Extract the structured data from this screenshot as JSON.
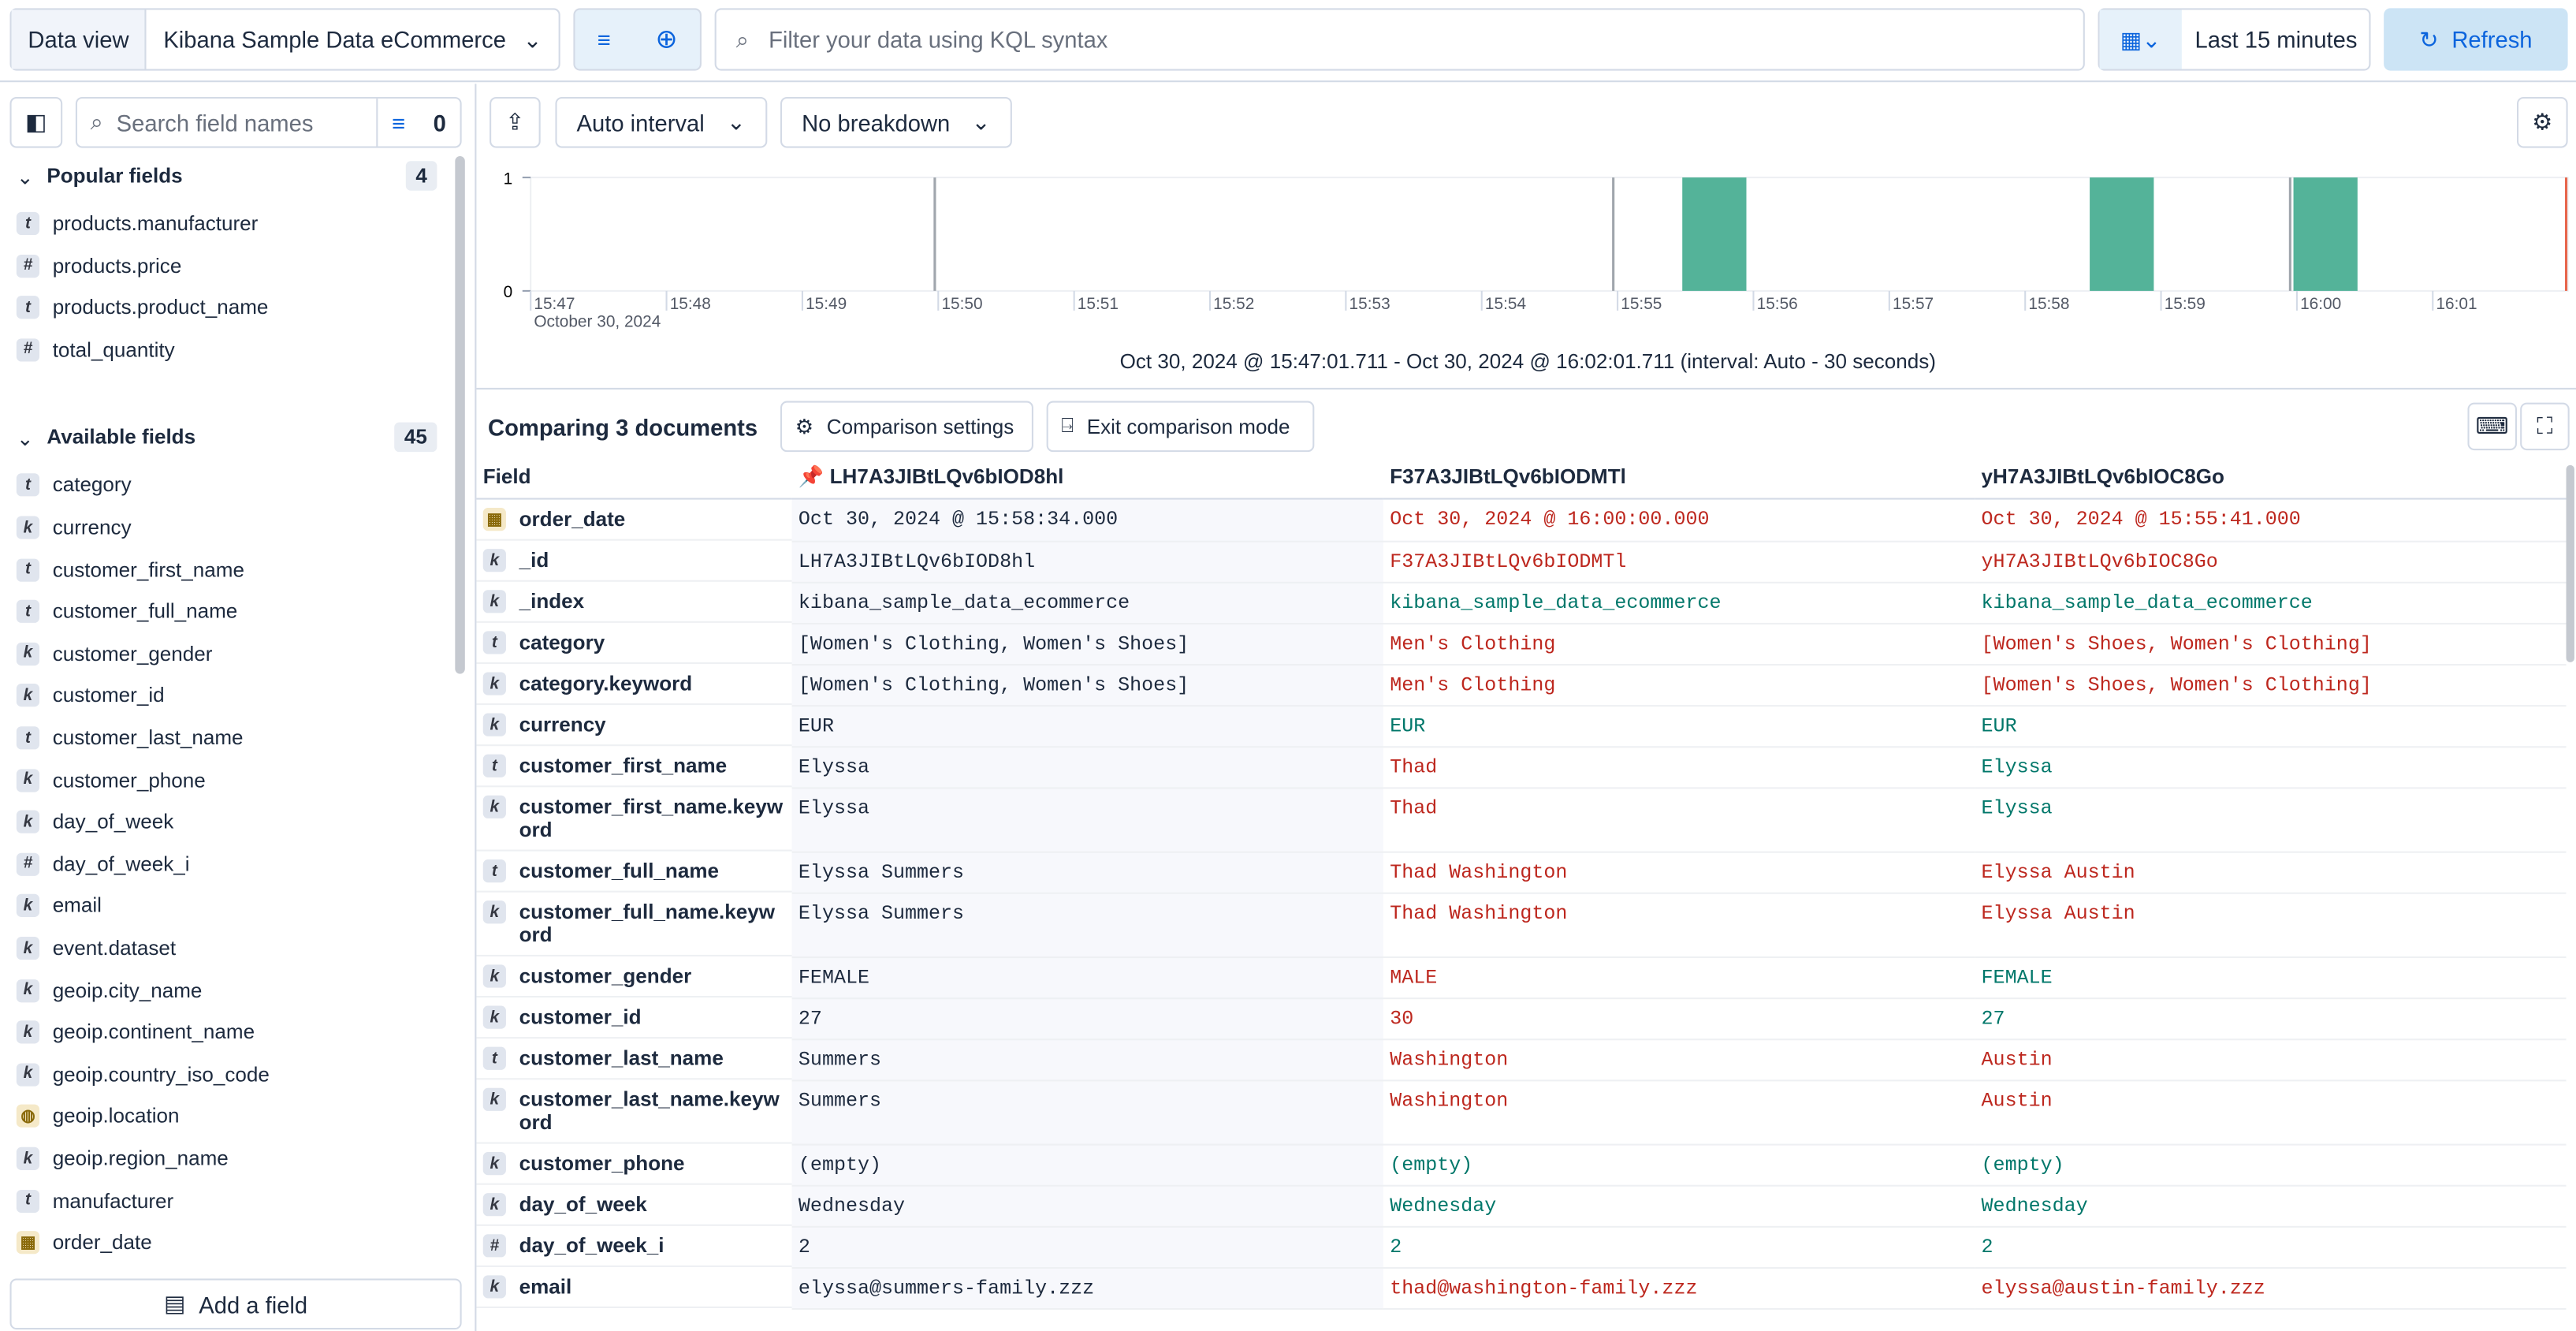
{
  "top_bar": {
    "data_view_label": "Data view",
    "data_view": "Kibana Sample Data eCommerce",
    "query_placeholder": "Filter your data using KQL syntax",
    "time_range": "Last 15 minutes",
    "refresh": "Refresh"
  },
  "sidebar": {
    "search_placeholder": "Search field names",
    "filter_count": "0",
    "popular": {
      "title": "Popular fields",
      "count": "4",
      "fields": [
        {
          "type": "t",
          "name": "products.manufacturer"
        },
        {
          "type": "#",
          "name": "products.price"
        },
        {
          "type": "t",
          "name": "products.product_name"
        },
        {
          "type": "#",
          "name": "total_quantity"
        }
      ]
    },
    "available": {
      "title": "Available fields",
      "count": "45",
      "fields": [
        {
          "type": "t",
          "name": "category"
        },
        {
          "type": "k",
          "name": "currency"
        },
        {
          "type": "t",
          "name": "customer_first_name"
        },
        {
          "type": "t",
          "name": "customer_full_name"
        },
        {
          "type": "k",
          "name": "customer_gender"
        },
        {
          "type": "k",
          "name": "customer_id"
        },
        {
          "type": "t",
          "name": "customer_last_name"
        },
        {
          "type": "k",
          "name": "customer_phone"
        },
        {
          "type": "k",
          "name": "day_of_week"
        },
        {
          "type": "#",
          "name": "day_of_week_i"
        },
        {
          "type": "k",
          "name": "email"
        },
        {
          "type": "k",
          "name": "event.dataset"
        },
        {
          "type": "k",
          "name": "geoip.city_name"
        },
        {
          "type": "k",
          "name": "geoip.continent_name"
        },
        {
          "type": "k",
          "name": "geoip.country_iso_code"
        },
        {
          "type": "geo",
          "name": "geoip.location"
        },
        {
          "type": "k",
          "name": "geoip.region_name"
        },
        {
          "type": "t",
          "name": "manufacturer"
        },
        {
          "type": "date",
          "name": "order_date"
        }
      ]
    },
    "add_field": "Add a field"
  },
  "histogram": {
    "interval": "Auto interval",
    "breakdown": "No breakdown",
    "ylim": [
      0,
      1
    ],
    "yticks": [
      0,
      1
    ],
    "xticks": [
      "15:47",
      "15:48",
      "15:49",
      "15:50",
      "15:51",
      "15:52",
      "15:53",
      "15:54",
      "15:55",
      "15:56",
      "15:57",
      "15:58",
      "15:59",
      "16:00",
      "16:01"
    ],
    "date_label": "October 30, 2024",
    "bar_counts": [
      1,
      1,
      1
    ],
    "range_text": "Oct 30, 2024 @ 15:47:01.711 - Oct 30, 2024 @ 16:02:01.711 (interval: Auto - 30 seconds)"
  },
  "comparison": {
    "title": "Comparing 3 documents",
    "settings_button": "Comparison settings",
    "exit_button": "Exit comparison mode",
    "columns": [
      "Field",
      "LH7A3JIBtLQv6bIOD8hl",
      "F37A3JIBtLQv6bIODMTl",
      "yH7A3JIBtLQv6bIOC8Go"
    ],
    "rows": [
      {
        "type": "date",
        "field": "order_date",
        "values": [
          "Oct 30, 2024 @ 15:58:34.000",
          "Oct 30, 2024 @ 16:00:00.000",
          "Oct 30, 2024 @ 15:55:41.000"
        ]
      },
      {
        "type": "k",
        "field": "_id",
        "values": [
          "LH7A3JIBtLQv6bIOD8hl",
          "F37A3JIBtLQv6bIODMTl",
          "yH7A3JIBtLQv6bIOC8Go"
        ]
      },
      {
        "type": "k",
        "field": "_index",
        "values": [
          "kibana_sample_data_ecommerce",
          "kibana_sample_data_ecommerce",
          "kibana_sample_data_ecommerce"
        ]
      },
      {
        "type": "t",
        "field": "category",
        "values": [
          "[Women's Clothing, Women's Shoes]",
          "Men's Clothing",
          "[Women's Shoes, Women's Clothing]"
        ]
      },
      {
        "type": "k",
        "field": "category.keyword",
        "values": [
          "[Women's Clothing, Women's Shoes]",
          "Men's Clothing",
          "[Women's Shoes, Women's Clothing]"
        ]
      },
      {
        "type": "k",
        "field": "currency",
        "values": [
          "EUR",
          "EUR",
          "EUR"
        ]
      },
      {
        "type": "t",
        "field": "customer_first_name",
        "values": [
          "Elyssa",
          "Thad",
          "Elyssa"
        ]
      },
      {
        "type": "k",
        "field": "customer_first_name.keyword",
        "values": [
          "Elyssa",
          "Thad",
          "Elyssa"
        ]
      },
      {
        "type": "t",
        "field": "customer_full_name",
        "values": [
          "Elyssa Summers",
          "Thad Washington",
          "Elyssa Austin"
        ]
      },
      {
        "type": "k",
        "field": "customer_full_name.keyword",
        "values": [
          "Elyssa Summers",
          "Thad Washington",
          "Elyssa Austin"
        ]
      },
      {
        "type": "k",
        "field": "customer_gender",
        "values": [
          "FEMALE",
          "MALE",
          "FEMALE"
        ]
      },
      {
        "type": "k",
        "field": "customer_id",
        "values": [
          "27",
          "30",
          "27"
        ]
      },
      {
        "type": "t",
        "field": "customer_last_name",
        "values": [
          "Summers",
          "Washington",
          "Austin"
        ]
      },
      {
        "type": "k",
        "field": "customer_last_name.keyword",
        "values": [
          "Summers",
          "Washington",
          "Austin"
        ]
      },
      {
        "type": "k",
        "field": "customer_phone",
        "values": [
          "(empty)",
          "(empty)",
          "(empty)"
        ]
      },
      {
        "type": "k",
        "field": "day_of_week",
        "values": [
          "Wednesday",
          "Wednesday",
          "Wednesday"
        ]
      },
      {
        "type": "#",
        "field": "day_of_week_i",
        "values": [
          "2",
          "2",
          "2"
        ]
      },
      {
        "type": "k",
        "field": "email",
        "values": [
          "elyssa@summers-family.zzz",
          "thad@washington-family.zzz",
          "elyssa@austin-family.zzz"
        ]
      }
    ]
  }
}
